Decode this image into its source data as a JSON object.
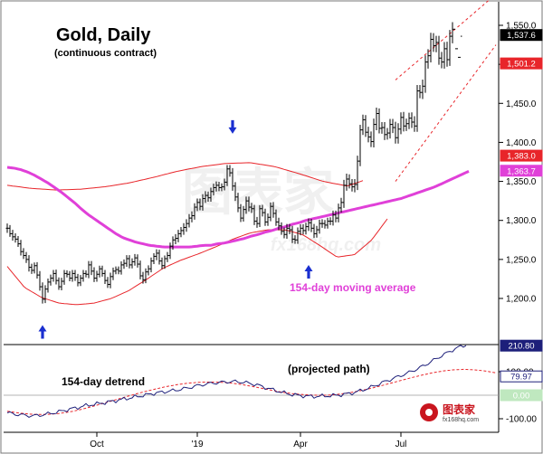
{
  "chart_data": [
    {
      "type": "line",
      "title": "Gold, Daily",
      "subtitle": "(continuous contract)",
      "xlabel": "",
      "ylabel": "",
      "ylim": [
        1160,
        1565
      ],
      "y_ticks": [
        "1,550.0",
        "1,500.0",
        "1,450.0",
        "1,400.0",
        "1,350.0",
        "1,300.0",
        "1,250.0",
        "1,200.0"
      ],
      "x_ticks": [
        "Oct",
        "'19",
        "Apr",
        "Jul"
      ],
      "x_tick_index": [
        33,
        70,
        108,
        145
      ],
      "n_days": 180,
      "price_close": [
        1290,
        1283,
        1279,
        1276,
        1270,
        1260,
        1255,
        1250,
        1240,
        1236,
        1242,
        1230,
        1215,
        1199,
        1212,
        1221,
        1226,
        1232,
        1223,
        1215,
        1222,
        1232,
        1231,
        1226,
        1232,
        1227,
        1220,
        1226,
        1232,
        1231,
        1243,
        1235,
        1226,
        1231,
        1238,
        1232,
        1223,
        1218,
        1228,
        1235,
        1237,
        1235,
        1243,
        1245,
        1251,
        1243,
        1247,
        1252,
        1244,
        1229,
        1224,
        1234,
        1238,
        1248,
        1254,
        1258,
        1248,
        1242,
        1251,
        1255,
        1267,
        1275,
        1277,
        1283,
        1287,
        1291,
        1296,
        1303,
        1306,
        1317,
        1323,
        1318,
        1328,
        1332,
        1329,
        1337,
        1342,
        1345,
        1342,
        1343,
        1349,
        1366,
        1361,
        1344,
        1330,
        1316,
        1303,
        1314,
        1325,
        1317,
        1315,
        1299,
        1296,
        1315,
        1310,
        1298,
        1304,
        1318,
        1309,
        1298,
        1293,
        1286,
        1282,
        1290,
        1288,
        1276,
        1275,
        1286,
        1290,
        1287,
        1292,
        1297,
        1290,
        1283,
        1288,
        1296,
        1296,
        1294,
        1299,
        1299,
        1307,
        1303,
        1316,
        1323,
        1345,
        1353,
        1347,
        1343,
        1346,
        1376,
        1416,
        1429,
        1413,
        1407,
        1401,
        1423,
        1437,
        1418,
        1419,
        1410,
        1412,
        1423,
        1419,
        1406,
        1417,
        1432,
        1421,
        1424,
        1431,
        1426,
        1421,
        1466,
        1464,
        1472,
        1503,
        1511,
        1532,
        1524,
        1528,
        1508,
        1503,
        1520,
        1506,
        1536,
        1545,
        1520,
        1509,
        1536
      ],
      "price_spread": [
        12,
        8,
        10,
        9,
        8,
        10,
        9,
        9,
        11,
        9,
        8,
        9,
        10,
        11,
        10,
        9,
        9,
        9,
        10,
        8,
        9,
        9,
        8,
        8,
        9,
        9,
        9,
        8,
        9,
        8,
        10,
        10,
        10,
        9,
        8,
        8,
        9,
        9,
        10,
        9,
        8,
        8,
        9,
        10,
        9,
        9,
        9,
        10,
        9,
        9,
        10,
        9,
        9,
        9,
        8,
        10,
        9,
        9,
        8,
        9,
        9,
        9,
        11,
        10,
        9,
        11,
        11,
        10,
        11,
        10,
        10,
        10,
        11,
        11,
        10,
        10,
        10,
        10,
        9,
        9,
        9,
        10,
        10,
        12,
        10,
        11,
        10,
        9,
        11,
        11,
        11,
        10,
        11,
        9,
        10,
        10,
        10,
        10,
        11,
        10,
        11,
        9,
        10,
        11,
        11,
        10,
        10,
        10,
        10,
        10,
        10,
        11,
        10,
        11,
        10,
        10,
        11,
        9,
        9,
        10,
        11,
        11,
        11,
        12,
        14,
        14,
        12,
        12,
        14,
        14,
        13,
        13,
        12,
        14,
        14,
        15,
        15,
        13,
        14,
        14,
        13,
        14,
        14,
        15,
        15,
        13,
        14,
        13,
        14,
        15,
        15,
        15,
        15,
        17,
        17,
        17,
        17,
        16,
        17,
        17,
        16,
        17,
        18,
        16,
        18
      ],
      "ma154": [
        1368,
        1367,
        1365,
        1362,
        1358,
        1353,
        1348,
        1342,
        1336,
        1329,
        1322,
        1314,
        1307,
        1301,
        1295,
        1289,
        1283,
        1278,
        1275,
        1272,
        1270,
        1268,
        1267,
        1266,
        1266,
        1266,
        1266,
        1266,
        1267,
        1268,
        1268,
        1270,
        1271,
        1273,
        1275,
        1277,
        1280,
        1282,
        1285,
        1287,
        1290,
        1292,
        1295,
        1297,
        1300,
        1302,
        1304,
        1306,
        1308,
        1310,
        1312,
        1314,
        1316,
        1318,
        1320,
        1322,
        1324,
        1326,
        1328,
        1331,
        1334,
        1337,
        1340,
        1343,
        1347,
        1351,
        1355,
        1359,
        1363
      ],
      "upper_band": [
        1345,
        1341,
        1339,
        1340,
        1343,
        1348,
        1355,
        1363,
        1369,
        1373,
        1374,
        1369,
        1360,
        1350,
        1344,
        1355,
        1387,
        1435,
        1495,
        1560,
        1580
      ],
      "lower_band": [
        1241,
        1214,
        1201,
        1194,
        1192,
        1194,
        1200,
        1210,
        1224,
        1239,
        1249,
        1257,
        1266,
        1276,
        1284,
        1288,
        1288,
        1282,
        1268,
        1253,
        1256,
        1275,
        1305,
        1340,
        1375,
        1405,
        1440,
        1480,
        1515
      ],
      "channel_upper": [
        [
          143,
          1480
        ],
        [
          170,
          1560
        ],
        [
          180,
          1590
        ]
      ],
      "channel_lower": [
        [
          143,
          1350
        ],
        [
          180,
          1525
        ]
      ],
      "turn_arrows": [
        {
          "index": 13,
          "direction": "up",
          "price": 1196
        },
        {
          "index": 83,
          "direction": "down",
          "price": 1381
        },
        {
          "index": 111,
          "direction": "up",
          "price": 1273
        }
      ],
      "value_badges": [
        {
          "label": "1,537.6",
          "value": 1537.6,
          "bg": "#000000",
          "fg": "#ffffff"
        },
        {
          "label": "1,501.2",
          "value": 1501.2,
          "bg": "#e8252a",
          "fg": "#ffffff"
        },
        {
          "label": "1,383.0",
          "value": 1383.0,
          "bg": "#e8252a",
          "fg": "#ffffff"
        },
        {
          "label": "1,363.7",
          "value": 1363.7,
          "bg": "#e040d8",
          "fg": "#ffffff"
        }
      ],
      "colors": {
        "price": "#000000",
        "bands": "#e8252a",
        "moving_average": "#e040d8",
        "arrows": "#1a2fd0"
      },
      "annotations": [
        {
          "text": "154-day moving average",
          "color": "#e040d8"
        }
      ]
    },
    {
      "type": "line",
      "title": "154-day detrend",
      "ylim": [
        -110,
        235
      ],
      "y_ticks": [
        "100.00",
        "-100.00"
      ],
      "reference_value": 0,
      "detrend": [
        -75,
        -78,
        -82,
        -84,
        -86,
        -88,
        -86,
        -84,
        -80,
        -76,
        -72,
        -67,
        -62,
        -57,
        -53,
        -48,
        -43,
        -40,
        -37,
        -33,
        -30,
        -26,
        -22,
        -18,
        -14,
        -10,
        -6,
        -2,
        2,
        6,
        10,
        13,
        16,
        19,
        22,
        26,
        30,
        35,
        40,
        44,
        48,
        51,
        53,
        55,
        57,
        58,
        58,
        56,
        53,
        49,
        44,
        38,
        31,
        25,
        19,
        13,
        8,
        3,
        0,
        -2,
        -4,
        -5,
        -5,
        -4,
        -3,
        -2,
        0,
        2,
        5,
        9,
        14,
        20,
        27,
        35,
        43,
        52,
        60,
        68,
        76,
        84,
        92,
        101,
        110,
        120,
        131,
        143,
        155,
        167,
        178,
        189,
        199,
        208,
        214
      ],
      "projected_path": [
        -68,
        -75,
        -80,
        -82,
        -81,
        -77,
        -70,
        -60,
        -48,
        -35,
        -22,
        -9,
        4,
        16,
        27,
        37,
        45,
        51,
        55,
        56,
        55,
        52,
        46,
        38,
        29,
        20,
        12,
        6,
        2,
        0,
        0,
        3,
        9,
        17,
        27,
        38,
        50,
        62,
        74,
        85,
        95,
        103,
        108,
        110,
        108,
        103,
        95
      ],
      "value_badges": [
        {
          "label": "210.80",
          "value": 210.8,
          "bg": "#1d1f7a",
          "fg": "#ffffff"
        },
        {
          "label": "79.97",
          "value": 79.97,
          "bg": "#ffffff",
          "fg": "#1d1f7a",
          "border": "#1d1f7a"
        },
        {
          "label": "0.00",
          "value": 0.0,
          "bg": "#bfe8bf",
          "fg": "#ffffff"
        }
      ],
      "colors": {
        "detrend": "#1d1f7a",
        "projection": "#e8252a"
      },
      "annotations": [
        {
          "text": "(projected path)",
          "color": "#000000"
        }
      ]
    }
  ],
  "watermark": {
    "cn": "图表家",
    "en": "fx168hq.com",
    "logo_cn": "图表家",
    "logo_en": "fx168hq.com"
  }
}
